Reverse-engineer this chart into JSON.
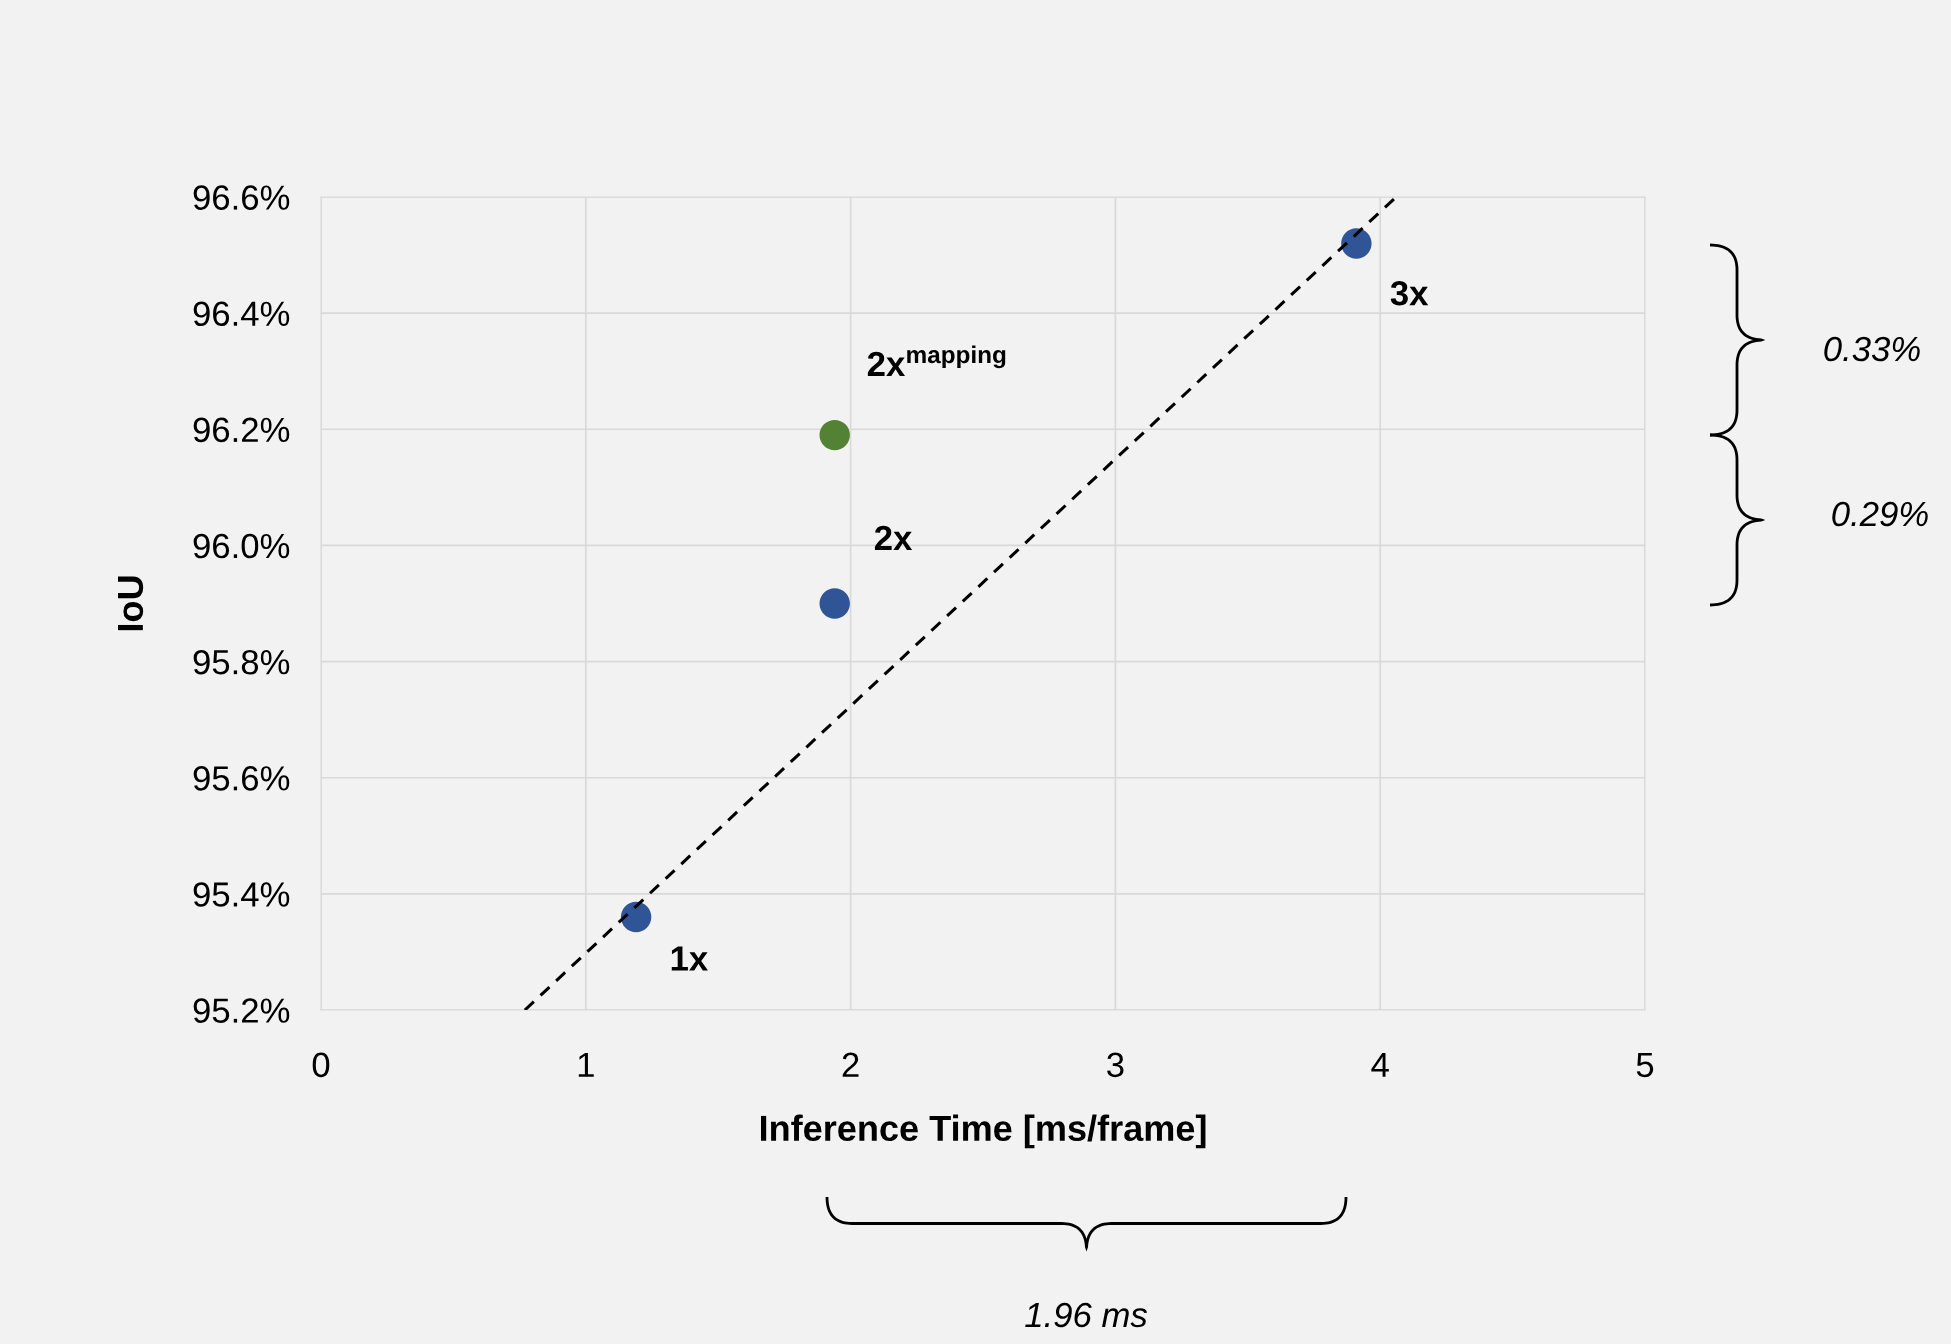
{
  "chart_data": {
    "type": "scatter",
    "xlabel": "Inference Time [ms/frame]",
    "ylabel": "IoU",
    "xlim": [
      0,
      5
    ],
    "xticks": [
      0,
      1,
      2,
      3,
      4,
      5
    ],
    "ylim": [
      95.2,
      96.6
    ],
    "yticks": [
      {
        "value": 95.2,
        "label": "95.2%"
      },
      {
        "value": 95.4,
        "label": "95.4%"
      },
      {
        "value": 95.6,
        "label": "95.6%"
      },
      {
        "value": 95.8,
        "label": "95.8%"
      },
      {
        "value": 96.0,
        "label": "96.0%"
      },
      {
        "value": 96.2,
        "label": "96.2%"
      },
      {
        "value": 96.4,
        "label": "96.4%"
      },
      {
        "value": 96.6,
        "label": "96.6%"
      }
    ],
    "grid": true,
    "marker": "circle",
    "series": [
      {
        "color": "#2f5597",
        "x": [
          1.19,
          1.94,
          3.91
        ],
        "values": [
          95.36,
          95.9,
          96.52
        ]
      },
      {
        "color": "#548235",
        "x": [
          1.94
        ],
        "values": [
          96.19
        ]
      },
      {
        "type": "line",
        "color": "#000000",
        "line_style": "dashed",
        "marker": "none",
        "x": [
          0.77,
          4.06
        ],
        "values": [
          95.2,
          96.6
        ]
      }
    ],
    "annotations": [
      {
        "text": "1x",
        "x": 1.19,
        "y": 95.36
      },
      {
        "text": "2x",
        "x": 1.94,
        "y": 95.9
      },
      {
        "text": "2x$^{mapping}$",
        "x": 1.94,
        "y": 96.19
      },
      {
        "text": "3x",
        "x": 3.91,
        "y": 96.52
      },
      "0.33%",
      "0.29%",
      "1.96 ms"
    ]
  }
}
